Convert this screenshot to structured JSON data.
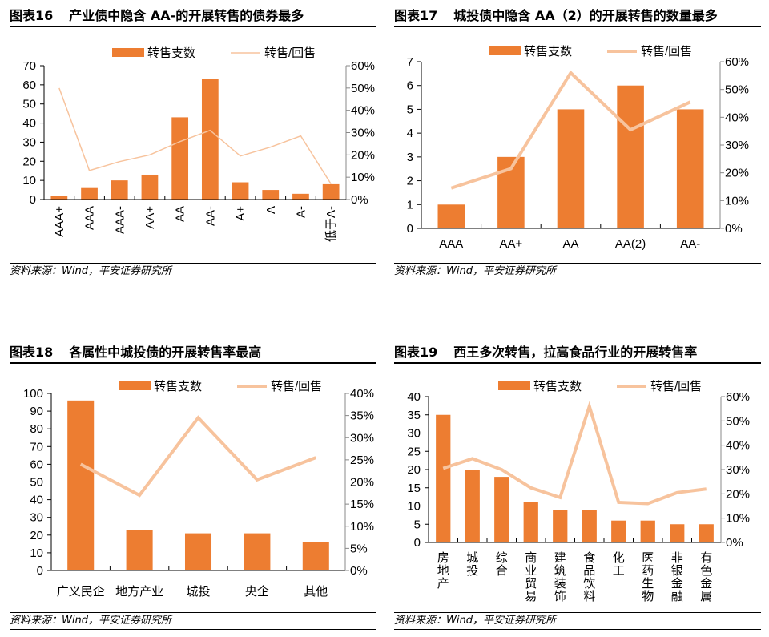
{
  "colors": {
    "bar": "#ED7D31",
    "line": "#F7C39D"
  },
  "panels": [
    {
      "figure": "图表16",
      "title": "产业债中隐含 AA-的开展转售的债券最多",
      "source": "资料来源：Wind，平安证券研究所"
    },
    {
      "figure": "图表17",
      "title": "城投债中隐含 AA（2）的开展转售的数量最多",
      "source": "资料来源：Wind，平安证券研究所"
    },
    {
      "figure": "图表18",
      "title": "各属性中城投债的开展转售率最高",
      "source": "资料来源：Wind，平安证券研究所"
    },
    {
      "figure": "图表19",
      "title": "西王多次转售，拉高食品行业的开展转售率",
      "source": "资料来源：Wind，平安证券研究所"
    }
  ],
  "chart_data": [
    {
      "type": "bar+line",
      "legend": "top",
      "categories": [
        "AAA+",
        "AAA",
        "AAA-",
        "AA+",
        "AA",
        "AA-",
        "A+",
        "A",
        "A-",
        "低于A-"
      ],
      "series": [
        {
          "name": "转售支数",
          "type": "bar",
          "axis": "left",
          "values": [
            2,
            6,
            10,
            13,
            43,
            63,
            9,
            5,
            3,
            8
          ]
        },
        {
          "name": "转售/回售",
          "type": "line",
          "axis": "right",
          "values": [
            50,
            13,
            17,
            20,
            26,
            31,
            19.5,
            23.5,
            28.5,
            7
          ]
        }
      ],
      "ylim": [
        0,
        70
      ],
      "yticks": [
        0,
        10,
        20,
        30,
        40,
        50,
        60,
        70
      ],
      "y2lim": [
        0,
        60
      ],
      "y2ticks": [
        "0%",
        "10%",
        "20%",
        "30%",
        "40%",
        "50%",
        "60%"
      ]
    },
    {
      "type": "bar+line",
      "legend": "top",
      "categories": [
        "AAA",
        "AA+",
        "AA",
        "AA(2)",
        "AA-"
      ],
      "series": [
        {
          "name": "转售支数",
          "type": "bar",
          "axis": "left",
          "values": [
            1,
            3,
            5,
            6,
            5
          ]
        },
        {
          "name": "转售/回售",
          "type": "line",
          "axis": "right",
          "values": [
            14.5,
            21.5,
            56,
            35.5,
            45.5
          ]
        }
      ],
      "ylim": [
        0,
        7
      ],
      "yticks": [
        0,
        1,
        2,
        3,
        4,
        5,
        6,
        7
      ],
      "y2lim": [
        0,
        60
      ],
      "y2ticks": [
        "0%",
        "10%",
        "20%",
        "30%",
        "40%",
        "50%",
        "60%"
      ]
    },
    {
      "type": "bar+line",
      "legend": "top",
      "categories": [
        "广义民企",
        "地方产业",
        "城投",
        "央企",
        "其他"
      ],
      "series": [
        {
          "name": "转售支数",
          "type": "bar",
          "axis": "left",
          "values": [
            96,
            23,
            21,
            21,
            16
          ]
        },
        {
          "name": "转售/回售",
          "type": "line",
          "axis": "right",
          "values": [
            24,
            17,
            34.5,
            20.5,
            25.5
          ]
        }
      ],
      "ylim": [
        0,
        100
      ],
      "yticks": [
        0,
        10,
        20,
        30,
        40,
        50,
        60,
        70,
        80,
        90,
        100
      ],
      "y2lim": [
        0,
        40
      ],
      "y2ticks": [
        "0%",
        "5%",
        "10%",
        "15%",
        "20%",
        "25%",
        "30%",
        "35%",
        "40%"
      ]
    },
    {
      "type": "bar+line",
      "legend": "top",
      "categories": [
        "房地产",
        "城投",
        "综合",
        "商业贸易",
        "建筑装饰",
        "食品饮料",
        "化工",
        "医药生物",
        "非银金融",
        "有色金属"
      ],
      "series": [
        {
          "name": "转售支数",
          "type": "bar",
          "axis": "left",
          "values": [
            35,
            20,
            18,
            11,
            9,
            9,
            6,
            6,
            5,
            5
          ]
        },
        {
          "name": "转售/回售",
          "type": "line",
          "axis": "right",
          "values": [
            30.5,
            34.5,
            30,
            22.5,
            18.5,
            56,
            16.5,
            16,
            20.5,
            22
          ]
        }
      ],
      "ylim": [
        0,
        40
      ],
      "yticks": [
        0,
        5,
        10,
        15,
        20,
        25,
        30,
        35,
        40
      ],
      "y2lim": [
        0,
        60
      ],
      "y2ticks": [
        "0%",
        "10%",
        "20%",
        "30%",
        "40%",
        "50%",
        "60%"
      ]
    }
  ]
}
